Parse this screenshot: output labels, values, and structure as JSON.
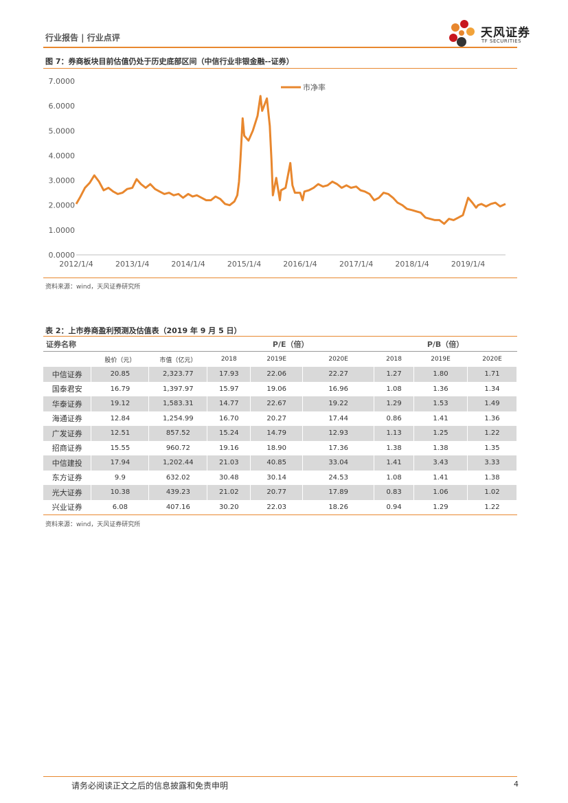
{
  "header": {
    "title": "行业报告 | 行业点评",
    "logo_cn": "天风证券",
    "logo_en": "TF SECURITIES"
  },
  "figure": {
    "title": "图 7：券商板块目前估值仍处于历史底部区间（中信行业非银金融--证券）",
    "source": "资料来源：wind，天风证券研究所"
  },
  "chart_data": {
    "type": "line",
    "title": "",
    "xlabel": "",
    "ylabel": "",
    "ylim": [
      0,
      7
    ],
    "yticks": [
      "0.0000",
      "1.0000",
      "2.0000",
      "3.0000",
      "4.0000",
      "5.0000",
      "6.0000",
      "7.0000"
    ],
    "xticks": [
      "2012/1/4",
      "2013/1/4",
      "2014/1/4",
      "2015/1/4",
      "2016/1/4",
      "2017/1/4",
      "2018/1/4",
      "2019/1/4"
    ],
    "legend_position": "top-center",
    "grid": false,
    "color": "#E8872E",
    "series": [
      {
        "name": "市净率",
        "x": [
          "2012-01-04",
          "2012-02-01",
          "2012-03-01",
          "2012-04-01",
          "2012-05-01",
          "2012-06-01",
          "2012-07-01",
          "2012-08-01",
          "2012-09-01",
          "2012-10-01",
          "2012-11-01",
          "2012-12-01",
          "2013-01-04",
          "2013-02-01",
          "2013-03-01",
          "2013-04-01",
          "2013-05-01",
          "2013-06-01",
          "2013-07-01",
          "2013-08-01",
          "2013-09-01",
          "2013-10-01",
          "2013-11-01",
          "2013-12-01",
          "2014-01-04",
          "2014-02-01",
          "2014-03-01",
          "2014-04-01",
          "2014-05-01",
          "2014-06-01",
          "2014-07-01",
          "2014-08-01",
          "2014-09-01",
          "2014-10-01",
          "2014-11-01",
          "2014-11-20",
          "2014-12-01",
          "2014-12-10",
          "2014-12-25",
          "2015-01-04",
          "2015-02-01",
          "2015-03-01",
          "2015-04-01",
          "2015-04-20",
          "2015-05-01",
          "2015-06-01",
          "2015-06-20",
          "2015-07-01",
          "2015-07-10",
          "2015-08-01",
          "2015-08-25",
          "2015-09-01",
          "2015-10-01",
          "2015-11-01",
          "2015-11-15",
          "2015-12-01",
          "2016-01-04",
          "2016-01-20",
          "2016-02-01",
          "2016-03-01",
          "2016-04-01",
          "2016-05-01",
          "2016-06-01",
          "2016-07-01",
          "2016-08-01",
          "2016-09-01",
          "2016-10-01",
          "2016-11-01",
          "2016-12-01",
          "2017-01-04",
          "2017-02-01",
          "2017-03-01",
          "2017-04-01",
          "2017-05-01",
          "2017-06-01",
          "2017-07-01",
          "2017-08-01",
          "2017-09-01",
          "2017-10-01",
          "2017-11-01",
          "2017-12-01",
          "2018-01-04",
          "2018-02-01",
          "2018-03-01",
          "2018-04-01",
          "2018-05-01",
          "2018-06-01",
          "2018-07-01",
          "2018-08-01",
          "2018-09-01",
          "2018-10-01",
          "2018-11-01",
          "2018-12-01",
          "2019-01-04",
          "2019-02-01",
          "2019-02-25",
          "2019-03-10",
          "2019-04-01",
          "2019-05-01",
          "2019-06-01",
          "2019-07-01",
          "2019-08-01",
          "2019-09-05"
        ],
        "values": [
          2.05,
          2.35,
          2.7,
          2.9,
          3.2,
          2.95,
          2.6,
          2.7,
          2.55,
          2.45,
          2.5,
          2.65,
          2.7,
          3.05,
          2.85,
          2.7,
          2.85,
          2.65,
          2.55,
          2.45,
          2.5,
          2.4,
          2.45,
          2.3,
          2.45,
          2.35,
          2.4,
          2.3,
          2.2,
          2.2,
          2.35,
          2.25,
          2.05,
          2.0,
          2.15,
          2.4,
          2.95,
          3.8,
          5.5,
          4.8,
          4.6,
          5.0,
          5.6,
          6.4,
          5.8,
          6.3,
          5.2,
          3.8,
          2.4,
          3.1,
          2.2,
          2.6,
          2.7,
          3.7,
          2.8,
          2.5,
          2.5,
          2.2,
          2.55,
          2.6,
          2.7,
          2.85,
          2.75,
          2.8,
          2.95,
          2.85,
          2.7,
          2.8,
          2.7,
          2.75,
          2.6,
          2.55,
          2.45,
          2.2,
          2.3,
          2.5,
          2.45,
          2.3,
          2.1,
          2.0,
          1.85,
          1.8,
          1.75,
          1.7,
          1.5,
          1.45,
          1.4,
          1.4,
          1.25,
          1.45,
          1.4,
          1.5,
          1.6,
          2.3,
          2.1,
          1.9,
          2.0,
          2.05,
          1.95,
          2.05,
          2.1,
          1.95,
          2.05
        ]
      }
    ]
  },
  "table": {
    "title": "表 2：上市券商盈利预测及估值表（2019 年 9 月 5 日）",
    "header1": {
      "name": "证券名称",
      "pe": "P/E（倍）",
      "pb": "P/B（倍）"
    },
    "header2": [
      "股价（元）",
      "市值（亿元）",
      "2018",
      "2019E",
      "2020E",
      "2018",
      "2019E",
      "2020E"
    ],
    "rows": [
      [
        "中信证券",
        "20.85",
        "2,323.77",
        "17.93",
        "22.06",
        "22.27",
        "1.27",
        "1.80",
        "1.71"
      ],
      [
        "国泰君安",
        "16.79",
        "1,397.97",
        "15.97",
        "19.06",
        "16.96",
        "1.08",
        "1.36",
        "1.34"
      ],
      [
        "华泰证券",
        "19.12",
        "1,583.31",
        "14.77",
        "22.67",
        "19.22",
        "1.29",
        "1.53",
        "1.49"
      ],
      [
        "海通证券",
        "12.84",
        "1,254.99",
        "16.70",
        "20.27",
        "17.44",
        "0.86",
        "1.41",
        "1.36"
      ],
      [
        "广发证券",
        "12.51",
        "857.52",
        "15.24",
        "14.79",
        "12.93",
        "1.13",
        "1.25",
        "1.22"
      ],
      [
        "招商证券",
        "15.55",
        "960.72",
        "19.16",
        "18.90",
        "17.36",
        "1.38",
        "1.38",
        "1.35"
      ],
      [
        "中信建投",
        "17.94",
        "1,202.44",
        "21.03",
        "40.85",
        "33.04",
        "1.41",
        "3.43",
        "3.33"
      ],
      [
        "东方证券",
        "9.9",
        "632.02",
        "30.48",
        "30.14",
        "24.53",
        "1.08",
        "1.41",
        "1.38"
      ],
      [
        "光大证券",
        "10.38",
        "439.23",
        "21.02",
        "20.77",
        "17.89",
        "0.83",
        "1.06",
        "1.02"
      ],
      [
        "兴业证券",
        "6.08",
        "407.16",
        "30.20",
        "22.03",
        "18.26",
        "0.94",
        "1.29",
        "1.22"
      ]
    ],
    "source": "资料来源：wind，天风证券研究所"
  },
  "footer": {
    "disclaimer": "请务必阅读正文之后的信息披露和免责申明",
    "page": "4"
  }
}
